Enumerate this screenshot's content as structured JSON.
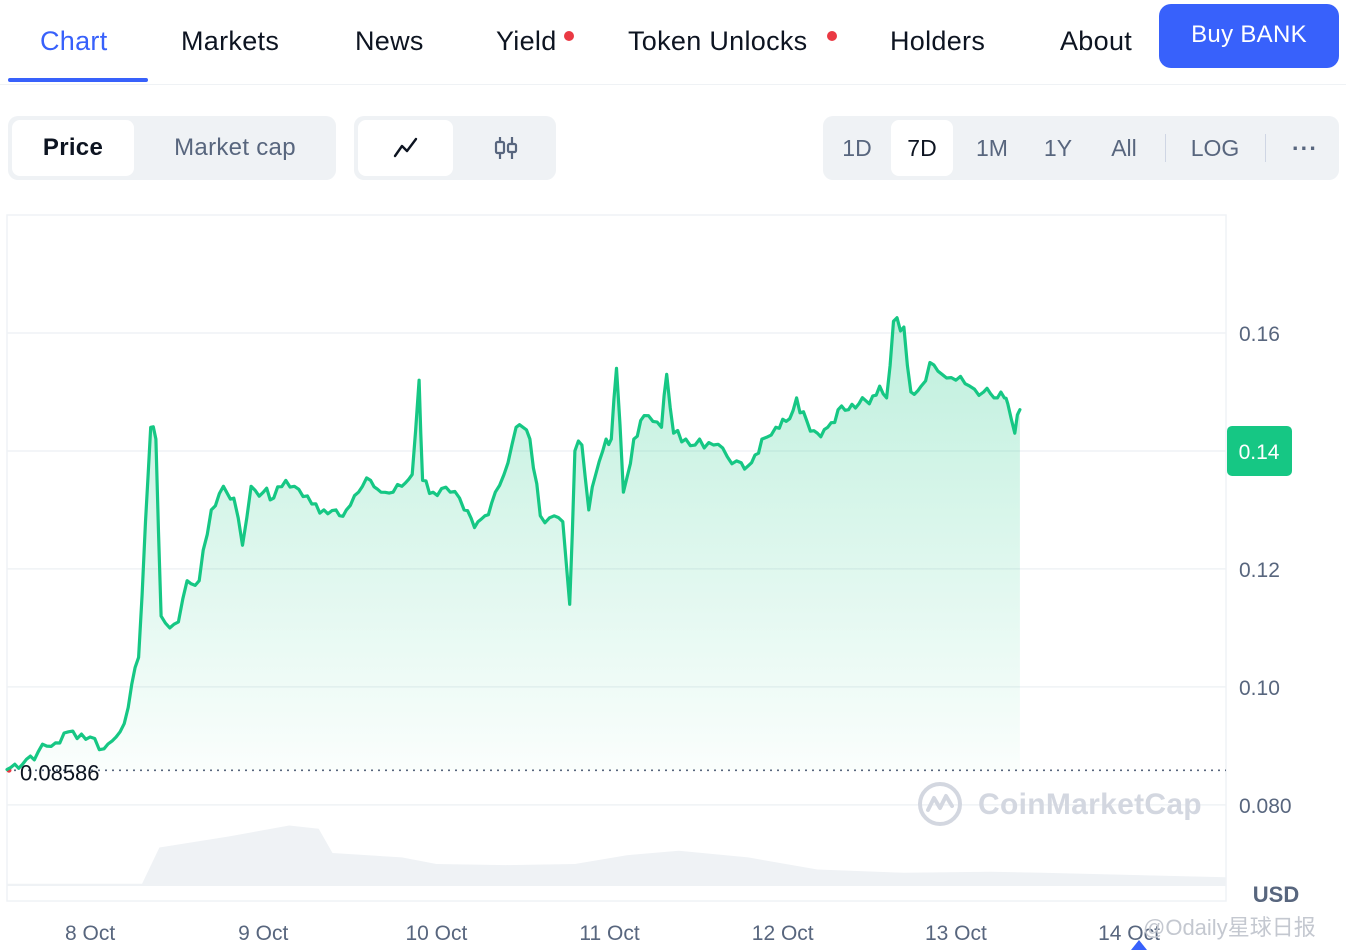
{
  "nav": {
    "tabs": [
      {
        "label": "Chart",
        "active": true,
        "notification": false
      },
      {
        "label": "Markets",
        "active": false,
        "notification": false
      },
      {
        "label": "News",
        "active": false,
        "notification": false
      },
      {
        "label": "Yield",
        "active": false,
        "notification": true
      },
      {
        "label": "Token Unlocks",
        "active": false,
        "notification": true
      },
      {
        "label": "Holders",
        "active": false,
        "notification": false
      },
      {
        "label": "About",
        "active": false,
        "notification": false
      }
    ],
    "buy_label": "Buy BANK"
  },
  "toggles": {
    "metric": {
      "options": [
        "Price",
        "Market cap"
      ],
      "selected": "Price"
    },
    "chart_style": {
      "options": [
        "line-chart-icon",
        "candlestick-icon"
      ],
      "selected": "line-chart-icon"
    },
    "ranges": {
      "options": [
        "1D",
        "7D",
        "1M",
        "1Y",
        "All"
      ],
      "selected": "7D"
    },
    "scale_label": "LOG",
    "more_label": "···"
  },
  "colors": {
    "accent": "#3861fb",
    "up": "#16c784",
    "notification": "#ea3943",
    "volume": "#eff2f5"
  },
  "watermark": "CoinMarketCap",
  "caption": "@Odaily星球日报",
  "chart_data": {
    "type": "line",
    "currency_label": "USD",
    "y_ticks": [
      "0.080",
      "0.10",
      "0.12",
      "0.14",
      "0.16"
    ],
    "y_tick_values": [
      0.08,
      0.1,
      0.12,
      0.14,
      0.16
    ],
    "ylim": [
      0.0637,
      0.18
    ],
    "x_ticks": [
      "8 Oct",
      "9 Oct",
      "10 Oct",
      "11 Oct",
      "12 Oct",
      "13 Oct",
      "14 Oct"
    ],
    "x_tick_values": [
      0.8,
      1.8,
      2.8,
      3.8,
      4.8,
      5.8,
      6.8
    ],
    "xlim": [
      0.32,
      7.36
    ],
    "open_price": 0.08586,
    "open_price_label": "0.08586",
    "current_price": 0.14,
    "current_price_label": "0.14",
    "grid": true,
    "series": [
      {
        "values": [
          [
            0.32,
            0.086
          ],
          [
            0.5,
            0.089
          ],
          [
            0.6,
            0.0905
          ],
          [
            0.7,
            0.0925
          ],
          [
            0.8,
            0.0915
          ],
          [
            0.88,
            0.0895
          ],
          [
            0.95,
            0.0915
          ],
          [
            1.02,
            0.0965
          ],
          [
            1.08,
            0.105
          ],
          [
            1.12,
            0.128
          ],
          [
            1.15,
            0.144
          ],
          [
            1.18,
            0.142
          ],
          [
            1.21,
            0.112
          ],
          [
            1.26,
            0.11
          ],
          [
            1.31,
            0.111
          ],
          [
            1.36,
            0.118
          ],
          [
            1.43,
            0.118
          ],
          [
            1.5,
            0.13
          ],
          [
            1.57,
            0.134
          ],
          [
            1.63,
            0.132
          ],
          [
            1.68,
            0.124
          ],
          [
            1.73,
            0.134
          ],
          [
            1.8,
            0.133
          ],
          [
            1.86,
            0.132
          ],
          [
            1.93,
            0.135
          ],
          [
            1.98,
            0.134
          ],
          [
            2.08,
            0.131
          ],
          [
            2.15,
            0.13
          ],
          [
            2.22,
            0.13
          ],
          [
            2.28,
            0.13
          ],
          [
            2.35,
            0.133
          ],
          [
            2.42,
            0.135
          ],
          [
            2.48,
            0.133
          ],
          [
            2.55,
            0.133
          ],
          [
            2.6,
            0.134
          ],
          [
            2.66,
            0.136
          ],
          [
            2.7,
            0.152
          ],
          [
            2.72,
            0.135
          ],
          [
            2.78,
            0.133
          ],
          [
            2.88,
            0.133
          ],
          [
            2.96,
            0.13
          ],
          [
            3.02,
            0.127
          ],
          [
            3.08,
            0.129
          ],
          [
            3.14,
            0.133
          ],
          [
            3.19,
            0.136
          ],
          [
            3.26,
            0.144
          ],
          [
            3.3,
            0.144
          ],
          [
            3.34,
            0.142
          ],
          [
            3.4,
            0.129
          ],
          [
            3.48,
            0.129
          ],
          [
            3.53,
            0.128
          ],
          [
            3.57,
            0.114
          ],
          [
            3.6,
            0.14
          ],
          [
            3.64,
            0.141
          ],
          [
            3.68,
            0.13
          ],
          [
            3.72,
            0.136
          ],
          [
            3.78,
            0.142
          ],
          [
            3.81,
            0.142
          ],
          [
            3.84,
            0.154
          ],
          [
            3.88,
            0.133
          ],
          [
            3.94,
            0.142
          ],
          [
            4.0,
            0.146
          ],
          [
            4.05,
            0.145
          ],
          [
            4.1,
            0.144
          ],
          [
            4.13,
            0.153
          ],
          [
            4.17,
            0.143
          ],
          [
            4.24,
            0.142
          ],
          [
            4.32,
            0.142
          ],
          [
            4.4,
            0.141
          ],
          [
            4.48,
            0.139
          ],
          [
            4.56,
            0.138
          ],
          [
            4.62,
            0.138
          ],
          [
            4.68,
            0.142
          ],
          [
            4.76,
            0.144
          ],
          [
            4.82,
            0.145
          ],
          [
            4.88,
            0.149
          ],
          [
            4.94,
            0.145
          ],
          [
            5.0,
            0.143
          ],
          [
            5.06,
            0.144
          ],
          [
            5.12,
            0.147
          ],
          [
            5.18,
            0.147
          ],
          [
            5.24,
            0.148
          ],
          [
            5.3,
            0.148
          ],
          [
            5.36,
            0.151
          ],
          [
            5.4,
            0.149
          ],
          [
            5.44,
            0.162
          ],
          [
            5.5,
            0.161
          ],
          [
            5.54,
            0.15
          ],
          [
            5.6,
            0.151
          ],
          [
            5.65,
            0.155
          ],
          [
            5.72,
            0.153
          ],
          [
            5.8,
            0.152
          ],
          [
            5.88,
            0.151
          ],
          [
            5.96,
            0.15
          ],
          [
            6.02,
            0.149
          ],
          [
            6.08,
            0.149
          ],
          [
            6.1,
            0.148
          ],
          [
            6.14,
            0.143
          ],
          [
            6.17,
            0.147
          ]
        ]
      }
    ]
  }
}
